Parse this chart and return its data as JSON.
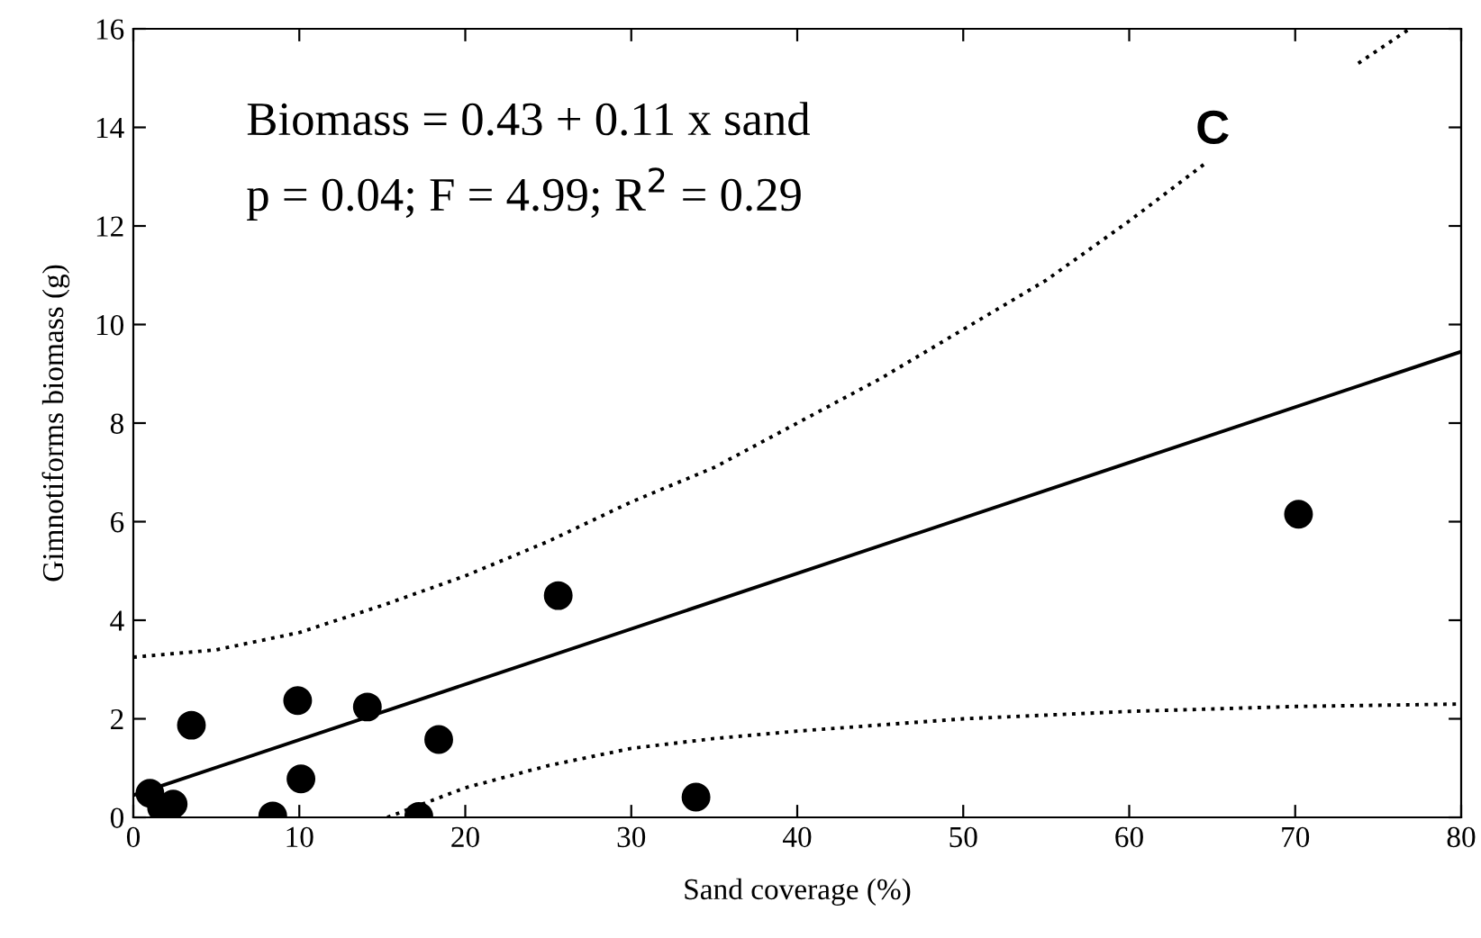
{
  "chart_data": {
    "type": "scatter",
    "xlabel": "Sand coverage (%)",
    "ylabel": "Gimnotiforms biomass (g)",
    "xlim": [
      0,
      80
    ],
    "ylim": [
      0,
      16
    ],
    "xticks": [
      0,
      10,
      20,
      30,
      40,
      50,
      60,
      70,
      80
    ],
    "yticks": [
      0,
      2,
      4,
      6,
      8,
      10,
      12,
      14,
      16
    ],
    "grid": false,
    "legend": false,
    "annotations": [
      "Biomass = 0.43 + 0.11 x sand",
      "p = 0.04; F = 4.99; R$^{2}$ = 0.29",
      "C"
    ],
    "series": [
      {
        "color": "#000000",
        "marker": "circle",
        "x": [
          1.0,
          1.7,
          2.4,
          3.5,
          8.4,
          9.9,
          10.1,
          14.1,
          17.2,
          18.4,
          25.6,
          33.9,
          70.2
        ],
        "values": [
          0.49,
          0.2,
          0.27,
          1.87,
          0.03,
          2.37,
          0.78,
          2.24,
          0.02,
          1.58,
          4.5,
          0.41,
          6.15
        ]
      },
      {
        "type": "line",
        "color": "#000000",
        "line_style": "solid",
        "marker": "none",
        "x": [
          0,
          80
        ],
        "values": [
          0.45,
          9.45
        ]
      },
      {
        "type": "line",
        "color": "#000000",
        "line_style": "dotted",
        "marker": "none",
        "x": [
          0,
          5,
          10,
          15,
          20,
          25,
          30,
          35,
          40,
          45,
          50,
          55,
          60,
          64.7,
          69,
          73.8,
          76.9
        ],
        "values": [
          3.25,
          3.4,
          3.75,
          4.3,
          4.9,
          5.6,
          6.4,
          7.1,
          8.0,
          8.9,
          9.9,
          10.9,
          12.1,
          13.3,
          null,
          15.3,
          16
        ]
      },
      {
        "type": "line",
        "color": "#000000",
        "line_style": "dotted",
        "marker": "none",
        "x": [
          15.3,
          20,
          25,
          30,
          35,
          40,
          50,
          60,
          70,
          80
        ],
        "values": [
          0,
          0.6,
          1.05,
          1.4,
          1.6,
          1.75,
          2.0,
          2.15,
          2.25,
          2.3
        ]
      }
    ]
  }
}
